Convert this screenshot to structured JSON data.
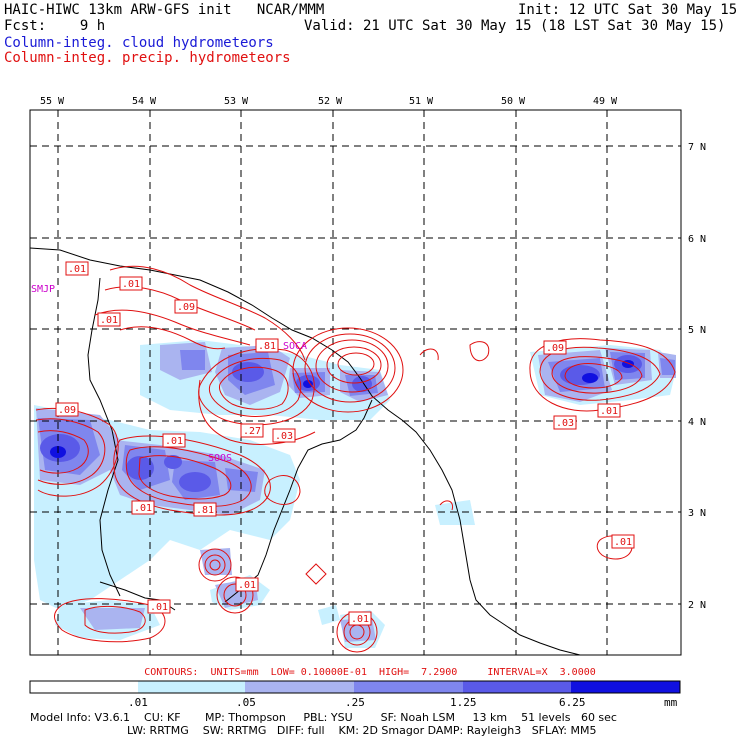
{
  "header": {
    "line1_left": "HAIC-HIWC 13km ARW-GFS init   NCAR/MMM",
    "line1_right": "Init: 12 UTC Sat 30 May 15",
    "line2_left": "Fcst:    9 h",
    "line2_right": "Valid: 21 UTC Sat 30 May 15 (18 LST Sat 30 May 15)",
    "field1": "Column-integ. cloud hydrometeors",
    "field2": "Column-integ. precip. hydrometeors"
  },
  "map": {
    "lon_labels": [
      "55 W",
      "54 W",
      "53 W",
      "52 W",
      "51 W",
      "50 W",
      "49 W"
    ],
    "lat_labels": [
      "7 N",
      "6 N",
      "5 N",
      "4 N",
      "3 N",
      "2 N"
    ],
    "contour_labels": [
      ".01",
      ".01",
      ".09",
      ".01",
      ".81",
      ".09",
      ".01",
      ".27",
      ".03",
      ".81",
      ".01",
      ".01",
      ".01",
      ".01",
      ".09",
      ".03",
      ".01",
      ".01"
    ],
    "station_labels": [
      "SMJP",
      "SOCA",
      "SOOS"
    ],
    "colors": {
      "line": "#e01010",
      "fill_light": "#c8f0ff",
      "fill_mid1": "#aab4f0",
      "fill_mid2": "#7f86ee",
      "fill_dark": "#5a5ae8",
      "fill_max": "#1010e0"
    }
  },
  "colorbar": {
    "ticks": [
      ".01",
      ".05",
      ".25",
      "1.25",
      "6.25"
    ],
    "unit": "mm",
    "colors": [
      "#ffffff",
      "#c8f0ff",
      "#aab4f0",
      "#7f86ee",
      "#5a5ae8",
      "#1010e0"
    ]
  },
  "contour_info": "CONTOURS:  UNITS=mm  LOW= 0.10000E-01  HIGH=  7.2900     INTERVAL=X  3.0000",
  "footer": {
    "line1": "Model Info: V3.6.1    CU: KF       MP: Thompson     PBL: YSU        SF: Noah LSM     13 km    51 levels   60 sec",
    "line2": "LW: RRTMG    SW: RRTMG   DIFF: full    KM: 2D Smagor DAMP: Rayleigh3   SFLAY: MM5"
  }
}
